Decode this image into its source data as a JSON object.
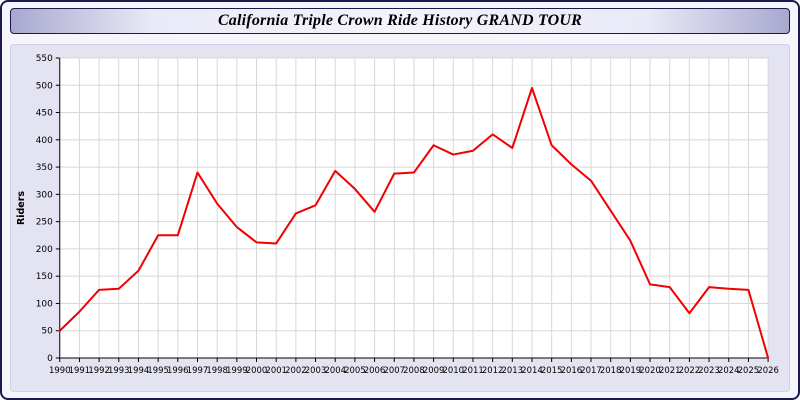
{
  "title": "California Triple Crown Ride History GRAND TOUR",
  "chart_data": {
    "type": "line",
    "x": [
      1990,
      1991,
      1992,
      1993,
      1994,
      1995,
      1996,
      1997,
      1998,
      1999,
      2000,
      2001,
      2002,
      2003,
      2004,
      2005,
      2006,
      2007,
      2008,
      2009,
      2010,
      2011,
      2012,
      2013,
      2014,
      2015,
      2016,
      2017,
      2018,
      2019,
      2020,
      2021,
      2022,
      2023,
      2024,
      2025,
      2026
    ],
    "series": [
      {
        "name": "Riders",
        "color": "#f10000",
        "values": [
          50,
          85,
          125,
          127,
          160,
          225,
          225,
          340,
          283,
          240,
          212,
          210,
          265,
          280,
          343,
          310,
          268,
          338,
          340,
          390,
          373,
          380,
          410,
          385,
          495,
          390,
          355,
          325,
          270,
          215,
          135,
          130,
          82,
          130,
          127,
          125,
          0
        ]
      }
    ],
    "title": "California Triple Crown Ride History GRAND TOUR",
    "xlabel": "",
    "ylabel": "Riders",
    "ylim": [
      0,
      550
    ],
    "ytick_step": 50,
    "grid": true,
    "legend_position": "none",
    "colors": {
      "plot_background": "#ffffff",
      "grid": "#d8d8d8",
      "axis": "#000000",
      "tick_text": "#000000"
    }
  }
}
